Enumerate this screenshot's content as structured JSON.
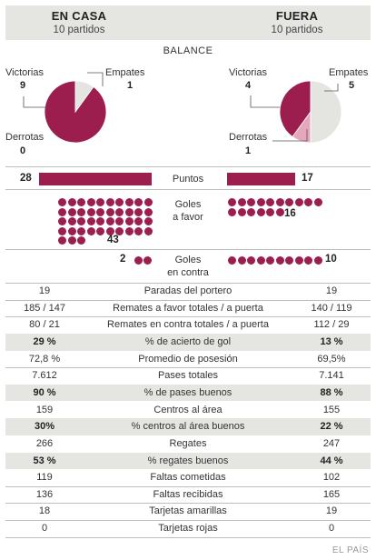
{
  "header": {
    "home_title": "EN CASA",
    "home_sub": "10 partidos",
    "away_title": "FUERA",
    "away_sub": "10 partidos"
  },
  "balance_label": "BALANCE",
  "pies": {
    "home": {
      "victorias_label": "Victorias",
      "victorias": 9,
      "empates_label": "Empates",
      "empates": 1,
      "derrotas_label": "Derrotas",
      "derrotas": 0
    },
    "away": {
      "victorias_label": "Victorias",
      "victorias": 4,
      "empates_label": "Empates",
      "empates": 5,
      "derrotas_label": "Derrotas",
      "derrotas": 1
    },
    "colors": {
      "victorias": "#9b1e4f",
      "empates": "#e4e5e1",
      "derrotas": "#e6a6bb"
    }
  },
  "puntos": {
    "label": "Puntos",
    "home": 28,
    "away": 17
  },
  "goles_favor": {
    "label_line1": "Goles",
    "label_line2": "a favor",
    "home": 43,
    "away": 16
  },
  "goles_contra": {
    "label_line1": "Goles",
    "label_line2": "en contra",
    "home": 2,
    "away": 10
  },
  "accent_color": "#9b1e4f",
  "stats": [
    {
      "label": "Paradas del portero",
      "home": "19",
      "away": "19",
      "shade": false
    },
    {
      "label": "Remates a favor totales / a puerta",
      "home": "185 / 147",
      "away": "140 / 119",
      "shade": false
    },
    {
      "label": "Remates en contra totales / a puerta",
      "home": "80 / 21",
      "away": "112 / 29",
      "shade": false
    },
    {
      "label": "% de acierto de gol",
      "home": "29 %",
      "away": "13 %",
      "shade": true
    },
    {
      "label": "Promedio de posesión",
      "home": "72,8 %",
      "away": "69,5%",
      "shade": false
    },
    {
      "label": "Pases totales",
      "home": "7.612",
      "away": "7.141",
      "shade": false
    },
    {
      "label": "% de pases buenos",
      "home": "90 %",
      "away": "88 %",
      "shade": true
    },
    {
      "label": "Centros al área",
      "home": "159",
      "away": "155",
      "shade": false
    },
    {
      "label": "% centros al área buenos",
      "home": "30%",
      "away": "22 %",
      "shade": true
    },
    {
      "label": "Regates",
      "home": "266",
      "away": "247",
      "shade": false
    },
    {
      "label": "% regates buenos",
      "home": "53 %",
      "away": "44 %",
      "shade": true
    },
    {
      "label": "Faltas cometidas",
      "home": "119",
      "away": "102",
      "shade": false
    },
    {
      "label": "Faltas recibidas",
      "home": "136",
      "away": "165",
      "shade": false
    },
    {
      "label": "Tarjetas amarillas",
      "home": "18",
      "away": "19",
      "shade": false
    },
    {
      "label": "Tarjetas rojas",
      "home": "0",
      "away": "0",
      "shade": false
    }
  ],
  "credit": "EL PAÍS",
  "chart_data": [
    {
      "type": "pie",
      "title": "EN CASA",
      "labels": [
        "Victorias",
        "Empates",
        "Derrotas"
      ],
      "values": [
        9,
        1,
        0
      ]
    },
    {
      "type": "pie",
      "title": "FUERA",
      "labels": [
        "Victorias",
        "Empates",
        "Derrotas"
      ],
      "values": [
        4,
        5,
        1
      ]
    },
    {
      "type": "bar",
      "title": "Puntos",
      "categories": [
        "EN CASA",
        "FUERA"
      ],
      "values": [
        28,
        17
      ]
    },
    {
      "type": "bar",
      "title": "Goles a favor",
      "categories": [
        "EN CASA",
        "FUERA"
      ],
      "values": [
        43,
        16
      ]
    },
    {
      "type": "bar",
      "title": "Goles en contra",
      "categories": [
        "EN CASA",
        "FUERA"
      ],
      "values": [
        2,
        10
      ]
    }
  ]
}
